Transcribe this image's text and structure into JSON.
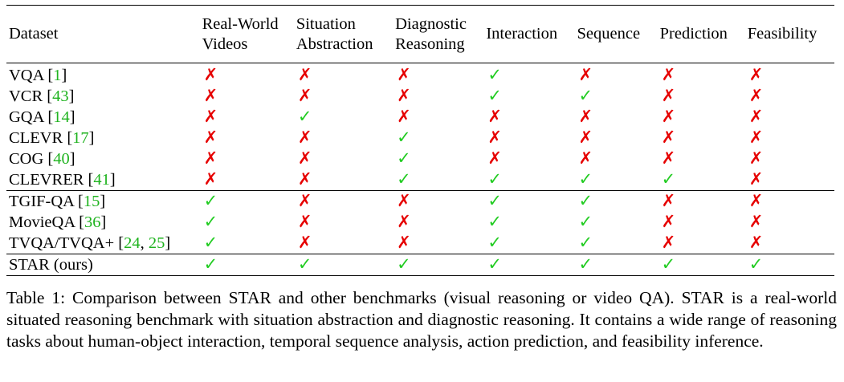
{
  "table": {
    "headers": [
      [
        "Dataset"
      ],
      [
        "Real-World",
        "Videos"
      ],
      [
        "Situation",
        "Abstraction"
      ],
      [
        "Diagnostic",
        "Reasoning"
      ],
      [
        "Interaction"
      ],
      [
        "Sequence"
      ],
      [
        "Prediction"
      ],
      [
        "Feasibility"
      ]
    ],
    "rows": [
      {
        "name": "VQA",
        "cites": [
          "1"
        ],
        "marks": [
          "no",
          "no",
          "no",
          "yes",
          "no",
          "no",
          "no"
        ]
      },
      {
        "name": "VCR",
        "cites": [
          "43"
        ],
        "marks": [
          "no",
          "no",
          "no",
          "yes",
          "yes",
          "no",
          "no"
        ]
      },
      {
        "name": "GQA",
        "cites": [
          "14"
        ],
        "marks": [
          "no",
          "yes",
          "no",
          "no",
          "no",
          "no",
          "no"
        ]
      },
      {
        "name": "CLEVR",
        "cites": [
          "17"
        ],
        "marks": [
          "no",
          "no",
          "yes",
          "no",
          "no",
          "no",
          "no"
        ]
      },
      {
        "name": "COG",
        "cites": [
          "40"
        ],
        "marks": [
          "no",
          "no",
          "yes",
          "no",
          "no",
          "no",
          "no"
        ]
      },
      {
        "name": "CLEVRER",
        "cites": [
          "41"
        ],
        "marks": [
          "no",
          "no",
          "yes",
          "yes",
          "yes",
          "yes",
          "no"
        ]
      },
      {
        "name": "TGIF-QA",
        "cites": [
          "15"
        ],
        "marks": [
          "yes",
          "no",
          "no",
          "yes",
          "yes",
          "no",
          "no"
        ]
      },
      {
        "name": "MovieQA",
        "cites": [
          "36"
        ],
        "marks": [
          "yes",
          "no",
          "no",
          "yes",
          "yes",
          "no",
          "no"
        ]
      },
      {
        "name": "TVQA/TVQA+",
        "cites": [
          "24",
          "25"
        ],
        "marks": [
          "yes",
          "no",
          "no",
          "yes",
          "yes",
          "no",
          "no"
        ]
      },
      {
        "name": "STAR (ours)",
        "cites": [],
        "marks": [
          "yes",
          "yes",
          "yes",
          "yes",
          "yes",
          "yes",
          "yes"
        ]
      }
    ],
    "group_starts": [
      6,
      9
    ]
  },
  "symbols": {
    "yes": "✓",
    "no": "✗"
  },
  "colors": {
    "yes": "#22cc22",
    "no": "#e60000",
    "cite": "#1fb31f"
  },
  "caption": "Table 1: Comparison between STAR and other benchmarks (visual reasoning or video QA). STAR is a real-world situated reasoning benchmark with situation abstraction and diagnostic reasoning. It contains a wide range of reasoning tasks about human-object interaction, temporal sequence analysis, action prediction, and feasibility inference."
}
